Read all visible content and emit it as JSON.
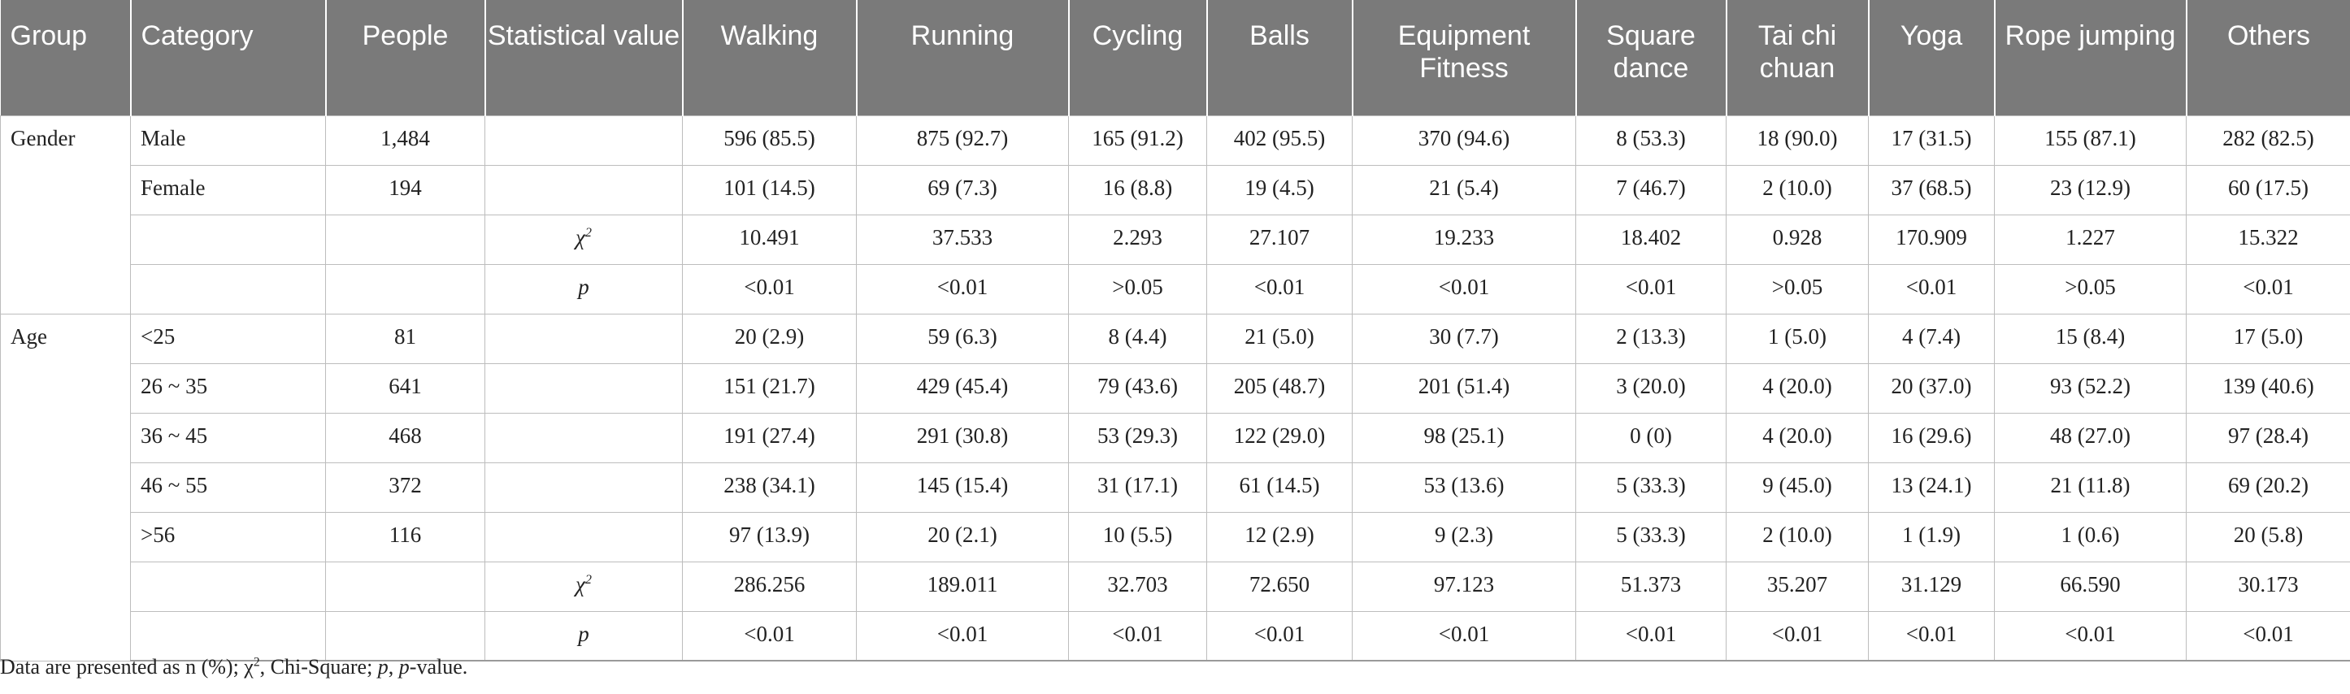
{
  "table": {
    "headers": [
      {
        "label": "Group",
        "align": "left"
      },
      {
        "label": "Category",
        "align": "left"
      },
      {
        "label": "People",
        "align": "center"
      },
      {
        "label": "Statistical value",
        "align": "center"
      },
      {
        "label": "Walking",
        "align": "center"
      },
      {
        "label": "Running",
        "align": "center"
      },
      {
        "label": "Cycling",
        "align": "center"
      },
      {
        "label": "Balls",
        "align": "center"
      },
      {
        "label": "Equipment Fitness",
        "align": "center"
      },
      {
        "label": "Square dance",
        "align": "center"
      },
      {
        "label": "Tai chi chuan",
        "align": "center"
      },
      {
        "label": "Yoga",
        "align": "center"
      },
      {
        "label": "Rope jumping",
        "align": "center"
      },
      {
        "label": "Others",
        "align": "center"
      }
    ],
    "groups": [
      {
        "name": "Gender",
        "rows": [
          {
            "category": "Male",
            "people": "1,484",
            "stat": "",
            "values": [
              "596 (85.5)",
              "875 (92.7)",
              "165 (91.2)",
              "402 (95.5)",
              "370 (94.6)",
              "8 (53.3)",
              "18 (90.0)",
              "17 (31.5)",
              "155 (87.1)",
              "282 (82.5)"
            ]
          },
          {
            "category": "Female",
            "people": "194",
            "stat": "",
            "values": [
              "101 (14.5)",
              "69 (7.3)",
              "16 (8.8)",
              "19 (4.5)",
              "21 (5.4)",
              "7 (46.7)",
              "2 (10.0)",
              "37 (68.5)",
              "23 (12.9)",
              "60 (17.5)"
            ]
          },
          {
            "category": "",
            "people": "",
            "stat": "χ2",
            "values": [
              "10.491",
              "37.533",
              "2.293",
              "27.107",
              "19.233",
              "18.402",
              "0.928",
              "170.909",
              "1.227",
              "15.322"
            ]
          },
          {
            "category": "",
            "people": "",
            "stat": "p",
            "values": [
              "<0.01",
              "<0.01",
              ">0.05",
              "<0.01",
              "<0.01",
              "<0.01",
              ">0.05",
              "<0.01",
              ">0.05",
              "<0.01"
            ]
          }
        ]
      },
      {
        "name": "Age",
        "rows": [
          {
            "category": "<25",
            "people": "81",
            "stat": "",
            "values": [
              "20 (2.9)",
              "59 (6.3)",
              "8 (4.4)",
              "21 (5.0)",
              "30 (7.7)",
              "2 (13.3)",
              "1 (5.0)",
              "4 (7.4)",
              "15 (8.4)",
              "17 (5.0)"
            ]
          },
          {
            "category": "26 ~ 35",
            "people": "641",
            "stat": "",
            "values": [
              "151 (21.7)",
              "429 (45.4)",
              "79 (43.6)",
              "205 (48.7)",
              "201 (51.4)",
              "3 (20.0)",
              "4 (20.0)",
              "20 (37.0)",
              "93 (52.2)",
              "139 (40.6)"
            ]
          },
          {
            "category": "36 ~ 45",
            "people": "468",
            "stat": "",
            "values": [
              "191 (27.4)",
              "291 (30.8)",
              "53 (29.3)",
              "122 (29.0)",
              "98 (25.1)",
              "0 (0)",
              "4 (20.0)",
              "16 (29.6)",
              "48 (27.0)",
              "97 (28.4)"
            ]
          },
          {
            "category": "46 ~ 55",
            "people": "372",
            "stat": "",
            "values": [
              "238 (34.1)",
              "145 (15.4)",
              "31 (17.1)",
              "61 (14.5)",
              "53 (13.6)",
              "5 (33.3)",
              "9 (45.0)",
              "13 (24.1)",
              "21 (11.8)",
              "69 (20.2)"
            ]
          },
          {
            "category": ">56",
            "people": "116",
            "stat": "",
            "values": [
              "97 (13.9)",
              "20 (2.1)",
              "10 (5.5)",
              "12 (2.9)",
              "9 (2.3)",
              "5 (33.3)",
              "2 (10.0)",
              "1 (1.9)",
              "1 (0.6)",
              "20 (5.8)"
            ]
          },
          {
            "category": "",
            "people": "",
            "stat": "χ2",
            "values": [
              "286.256",
              "189.011",
              "32.703",
              "72.650",
              "97.123",
              "51.373",
              "35.207",
              "31.129",
              "66.590",
              "30.173"
            ]
          },
          {
            "category": "",
            "people": "",
            "stat": "p",
            "values": [
              "<0.01",
              "<0.01",
              "<0.01",
              "<0.01",
              "<0.01",
              "<0.01",
              "<0.01",
              "<0.01",
              "<0.01",
              "<0.01"
            ]
          }
        ]
      }
    ]
  },
  "footnote": "Data are presented as n (%); χ2, Chi-Square; p, p-value."
}
